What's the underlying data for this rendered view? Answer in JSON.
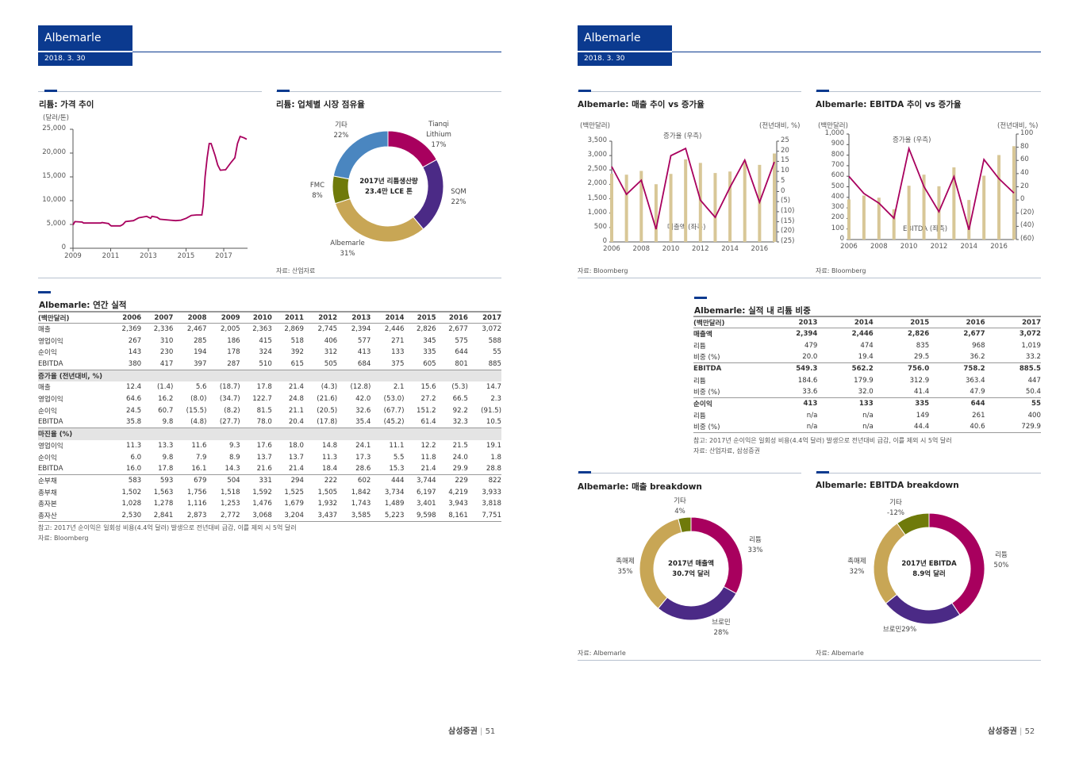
{
  "colors": {
    "brand": "#0b3a8f",
    "magenta": "#a8005e",
    "purple": "#4b2a86",
    "gold": "#c8a655",
    "olive": "#6f7a0a",
    "blue": "#4a86c0",
    "bar": "#d8c797"
  },
  "left_page": {
    "header": {
      "company": "Albemarle",
      "date": "2018. 3. 30"
    },
    "price_chart": {
      "title": "리튬: 가격 추이",
      "unit": "(달러/톤)"
    },
    "share_chart": {
      "title": "리튬: 업체별 시장 점유율",
      "center": [
        "2017년 리튬생산량",
        "23.4만 LCE 톤"
      ],
      "source": "자료: 산업자료",
      "labels": [
        {
          "name": "Tianqi Lithium",
          "pct": "17%"
        },
        {
          "name": "SQM",
          "pct": "22%"
        },
        {
          "name": "Albemarle",
          "pct": "31%"
        },
        {
          "name": "FMC",
          "pct": "8%"
        },
        {
          "name": "기타",
          "pct": "22%"
        }
      ]
    },
    "table": {
      "title": "Albemarle: 연간 실적",
      "header": [
        "(백만달러)",
        "2006",
        "2007",
        "2008",
        "2009",
        "2010",
        "2011",
        "2012",
        "2013",
        "2014",
        "2015",
        "2016",
        "2017"
      ],
      "rows": [
        {
          "type": "data",
          "label": "매출",
          "values": [
            "2,369",
            "2,336",
            "2,467",
            "2,005",
            "2,363",
            "2,869",
            "2,745",
            "2,394",
            "2,446",
            "2,826",
            "2,677",
            "3,072"
          ]
        },
        {
          "type": "data",
          "label": "영업이익",
          "values": [
            "267",
            "310",
            "285",
            "186",
            "415",
            "518",
            "406",
            "577",
            "271",
            "345",
            "575",
            "588"
          ]
        },
        {
          "type": "data",
          "label": "순이익",
          "values": [
            "143",
            "230",
            "194",
            "178",
            "324",
            "392",
            "312",
            "413",
            "133",
            "335",
            "644",
            "55"
          ]
        },
        {
          "type": "data",
          "label": "EBITDA",
          "values": [
            "380",
            "417",
            "397",
            "287",
            "510",
            "615",
            "505",
            "684",
            "375",
            "605",
            "801",
            "885"
          ]
        },
        {
          "type": "sec",
          "label": "증가율 (전년대비, %)"
        },
        {
          "type": "data",
          "label": "매출",
          "values": [
            "12.4",
            "(1.4)",
            "5.6",
            "(18.7)",
            "17.8",
            "21.4",
            "(4.3)",
            "(12.8)",
            "2.1",
            "15.6",
            "(5.3)",
            "14.7"
          ]
        },
        {
          "type": "data",
          "label": "영업이익",
          "values": [
            "64.6",
            "16.2",
            "(8.0)",
            "(34.7)",
            "122.7",
            "24.8",
            "(21.6)",
            "42.0",
            "(53.0)",
            "27.2",
            "66.5",
            "2.3"
          ]
        },
        {
          "type": "data",
          "label": "순이익",
          "values": [
            "24.5",
            "60.7",
            "(15.5)",
            "(8.2)",
            "81.5",
            "21.1",
            "(20.5)",
            "32.6",
            "(67.7)",
            "151.2",
            "92.2",
            "(91.5)"
          ]
        },
        {
          "type": "data",
          "label": "EBITDA",
          "values": [
            "35.8",
            "9.8",
            "(4.8)",
            "(27.7)",
            "78.0",
            "20.4",
            "(17.8)",
            "35.4",
            "(45.2)",
            "61.4",
            "32.3",
            "10.5"
          ]
        },
        {
          "type": "sec",
          "label": "마진율 (%)"
        },
        {
          "type": "data",
          "label": "영업이익",
          "values": [
            "11.3",
            "13.3",
            "11.6",
            "9.3",
            "17.6",
            "18.0",
            "14.8",
            "24.1",
            "11.1",
            "12.2",
            "21.5",
            "19.1"
          ]
        },
        {
          "type": "data",
          "label": "순이익",
          "values": [
            "6.0",
            "9.8",
            "7.9",
            "8.9",
            "13.7",
            "13.7",
            "11.3",
            "17.3",
            "5.5",
            "11.8",
            "24.0",
            "1.8"
          ]
        },
        {
          "type": "data",
          "label": "EBITDA",
          "values": [
            "16.0",
            "17.8",
            "16.1",
            "14.3",
            "21.6",
            "21.4",
            "18.4",
            "28.6",
            "15.3",
            "21.4",
            "29.9",
            "28.8"
          ]
        },
        {
          "type": "sep",
          "label": "순부채",
          "values": [
            "583",
            "593",
            "679",
            "504",
            "331",
            "294",
            "222",
            "602",
            "444",
            "3,744",
            "229",
            "822"
          ]
        },
        {
          "type": "data",
          "label": "총부채",
          "values": [
            "1,502",
            "1,563",
            "1,756",
            "1,518",
            "1,592",
            "1,525",
            "1,505",
            "1,842",
            "3,734",
            "6,197",
            "4,219",
            "3,933"
          ]
        },
        {
          "type": "data",
          "label": "총자본",
          "values": [
            "1,028",
            "1,278",
            "1,116",
            "1,253",
            "1,476",
            "1,679",
            "1,932",
            "1,743",
            "1,489",
            "3,401",
            "3,943",
            "3,818"
          ]
        },
        {
          "type": "last",
          "label": "총자산",
          "values": [
            "2,530",
            "2,841",
            "2,873",
            "2,772",
            "3,068",
            "3,204",
            "3,437",
            "3,585",
            "5,223",
            "9,598",
            "8,161",
            "7,751"
          ]
        }
      ],
      "note": "참고: 2017년 순이익은 일회성 비용(4.4억 달러) 발생으로 전년대비 급감, 이를 제외 시 5억 달러",
      "source": "자료: Bloomberg"
    },
    "footer": {
      "brand": "삼성증권",
      "page": "51"
    }
  },
  "right_page": {
    "header": {
      "company": "Albemarle",
      "date": "2018. 3. 30"
    },
    "sales_chart": {
      "title": "Albemarle: 매출 추이 vs 증가율",
      "left_unit": "(백만달러)",
      "right_unit": "(전년대비, %)",
      "line_label": "증가율 (우측)",
      "bar_label": "매출액 (좌측)",
      "source": "자료: Bloomberg"
    },
    "ebitda_chart": {
      "title": "Albemarle: EBITDA 추이 vs 증가율",
      "left_unit": "(백만달러)",
      "right_unit": "(전년대비, %)",
      "line_label": "증가율 (우측)",
      "bar_label": "EBITDA (좌측)",
      "source": "자료: Bloomberg"
    },
    "table": {
      "title": "Albemarle: 실적 내 리튬 비중",
      "header": [
        "(백만달러)",
        "2013",
        "2014",
        "2015",
        "2016",
        "2017"
      ],
      "rows": [
        {
          "type": "bold",
          "label": "매출액",
          "values": [
            "2,394",
            "2,446",
            "2,826",
            "2,677",
            "3,072"
          ]
        },
        {
          "type": "data",
          "label": "리튬",
          "values": [
            "479",
            "474",
            "835",
            "968",
            "1,019"
          ]
        },
        {
          "type": "data",
          "label": "비중 (%)",
          "values": [
            "20.0",
            "19.4",
            "29.5",
            "36.2",
            "33.2"
          ]
        },
        {
          "type": "boldsep",
          "label": "EBITDA",
          "values": [
            "549.3",
            "562.2",
            "756.0",
            "758.2",
            "885.5"
          ]
        },
        {
          "type": "data",
          "label": "리튬",
          "values": [
            "184.6",
            "179.9",
            "312.9",
            "363.4",
            "447"
          ]
        },
        {
          "type": "data",
          "label": "비중 (%)",
          "values": [
            "33.6",
            "32.0",
            "41.4",
            "47.9",
            "50.4"
          ]
        },
        {
          "type": "boldsep",
          "label": "순이익",
          "values": [
            "413",
            "133",
            "335",
            "644",
            "55"
          ]
        },
        {
          "type": "data",
          "label": "리튬",
          "values": [
            "n/a",
            "n/a",
            "149",
            "261",
            "400"
          ]
        },
        {
          "type": "last",
          "label": "비중 (%)",
          "values": [
            "n/a",
            "n/a",
            "44.4",
            "40.6",
            "729.9"
          ]
        }
      ],
      "note": "참고: 2017년 순이익은 일회성 비용(4.4억 달러) 발생으로 전년대비 급감, 이를 제외 시 5억 달러",
      "source": "자료: 산업자료, 삼성증권"
    },
    "sales_breakdown": {
      "title": "Albemarle: 매출 breakdown",
      "center": [
        "2017년 매출액",
        "30.7억 달러"
      ],
      "source": "자료: Albemarle",
      "labels": [
        {
          "name": "리튬",
          "pct": "33%"
        },
        {
          "name": "브로민",
          "pct": "28%"
        },
        {
          "name": "촉매제",
          "pct": "35%"
        },
        {
          "name": "기타",
          "pct": "4%"
        }
      ]
    },
    "ebitda_breakdown": {
      "title": "Albemarle: EBITDA breakdown",
      "center": [
        "2017년 EBITDA",
        "8.9억 달러"
      ],
      "source": "자료: Albemarle",
      "labels": [
        {
          "name": "리튬",
          "pct": "50%"
        },
        {
          "name": "브로민29%",
          "pct": ""
        },
        {
          "name": "촉매제",
          "pct": "32%"
        },
        {
          "name": "기타",
          "pct": "-12%"
        }
      ]
    },
    "footer": {
      "brand": "삼성증권",
      "page": "52"
    }
  },
  "chart_data": [
    {
      "type": "line",
      "title": "리튬: 가격 추이",
      "ylabel": "(달러/톤)",
      "ylim": [
        0,
        25000
      ],
      "yticks": [
        "0",
        "5,000",
        "10,000",
        "15,000",
        "20,000",
        "25,000"
      ],
      "xticks": [
        "2009",
        "2011",
        "2013",
        "2015",
        "2017"
      ],
      "x": [
        2009.0,
        2009.1,
        2009.49,
        2009.56,
        2010.47,
        2010.54,
        2010.89,
        2010.93,
        2011.03,
        2011.37,
        2011.51,
        2011.65,
        2011.79,
        2012.21,
        2012.49,
        2012.91,
        2013.12,
        2013.19,
        2013.47,
        2013.61,
        2014.17,
        2014.45,
        2014.73,
        2015.01,
        2015.28,
        2015.56,
        2015.84,
        2015.91,
        2016.01,
        2016.12,
        2016.23,
        2016.33,
        2016.54,
        2016.68,
        2016.82,
        2017.1,
        2017.38,
        2017.59,
        2017.73,
        2017.87,
        2018.08,
        2018.22
      ],
      "y": [
        4900,
        5600,
        5500,
        5300,
        5300,
        5400,
        5200,
        5000,
        4700,
        4700,
        4700,
        5000,
        5600,
        5800,
        6400,
        6700,
        6300,
        6700,
        6500,
        6100,
        5900,
        5800,
        5900,
        6300,
        6900,
        7000,
        7000,
        9000,
        15000,
        19000,
        22000,
        22000,
        19500,
        17500,
        16400,
        16500,
        18000,
        19000,
        22000,
        23500,
        23200,
        22900
      ]
    },
    {
      "type": "pie",
      "title": "리튬: 업체별 시장 점유율",
      "categories": [
        "Tianqi Lithium",
        "SQM",
        "Albemarle",
        "FMC",
        "기타"
      ],
      "values": [
        17,
        22,
        31,
        8,
        22
      ]
    },
    {
      "type": "bar",
      "title": "Albemarle: 매출 추이 vs 증가율",
      "categories": [
        "2006",
        "2007",
        "2008",
        "2009",
        "2010",
        "2011",
        "2012",
        "2013",
        "2014",
        "2015",
        "2016",
        "2017"
      ],
      "series": [
        {
          "name": "매출액 (좌측)",
          "values": [
            2369,
            2336,
            2467,
            2005,
            2363,
            2869,
            2745,
            2394,
            2446,
            2826,
            2677,
            3072
          ]
        },
        {
          "name": "증가율 (우측)",
          "values": [
            12.4,
            -1.4,
            5.6,
            -18.7,
            17.8,
            21.4,
            -4.3,
            -12.8,
            2.1,
            15.6,
            -5.3,
            14.7
          ]
        }
      ],
      "ylim": [
        0,
        3500
      ],
      "y2lim": [
        -25,
        25
      ],
      "yticks": [
        "0",
        "500",
        "1,000",
        "1,500",
        "2,000",
        "2,500",
        "3,000",
        "3,500"
      ],
      "y2ticks": [
        "(25)",
        "(20)",
        "(15)",
        "(10)",
        "(5)",
        "0",
        "5",
        "10",
        "15",
        "20",
        "25"
      ],
      "xticks": [
        "2006",
        "2008",
        "2010",
        "2012",
        "2014",
        "2016"
      ]
    },
    {
      "type": "bar",
      "title": "Albemarle: EBITDA 추이 vs 증가율",
      "categories": [
        "2006",
        "2007",
        "2008",
        "2009",
        "2010",
        "2011",
        "2012",
        "2013",
        "2014",
        "2015",
        "2016",
        "2017"
      ],
      "series": [
        {
          "name": "EBITDA (좌측)",
          "values": [
            380,
            417,
            397,
            287,
            510,
            615,
            505,
            684,
            375,
            605,
            801,
            885
          ]
        },
        {
          "name": "증가율 (우측)",
          "values": [
            35.8,
            9.8,
            -4.8,
            -27.7,
            78.0,
            20.4,
            -17.8,
            35.4,
            -45.2,
            61.4,
            32.3,
            10.5
          ]
        }
      ],
      "ylim": [
        0,
        1000
      ],
      "y2lim": [
        -60,
        100
      ],
      "yticks": [
        "0",
        "100",
        "200",
        "300",
        "400",
        "500",
        "600",
        "700",
        "800",
        "900",
        "1,000"
      ],
      "y2ticks": [
        "(60)",
        "(40)",
        "(20)",
        "0",
        "20",
        "40",
        "60",
        "80",
        "100"
      ],
      "xticks": [
        "2006",
        "2008",
        "2010",
        "2012",
        "2014",
        "2016"
      ]
    },
    {
      "type": "pie",
      "title": "Albemarle: 매출 breakdown",
      "categories": [
        "리튬",
        "브로민",
        "촉매제",
        "기타"
      ],
      "values": [
        33,
        28,
        35,
        4
      ]
    },
    {
      "type": "pie",
      "title": "Albemarle: EBITDA breakdown",
      "categories": [
        "리튬",
        "브로민",
        "촉매제",
        "기타"
      ],
      "values": [
        50,
        29,
        32,
        -12
      ]
    }
  ]
}
